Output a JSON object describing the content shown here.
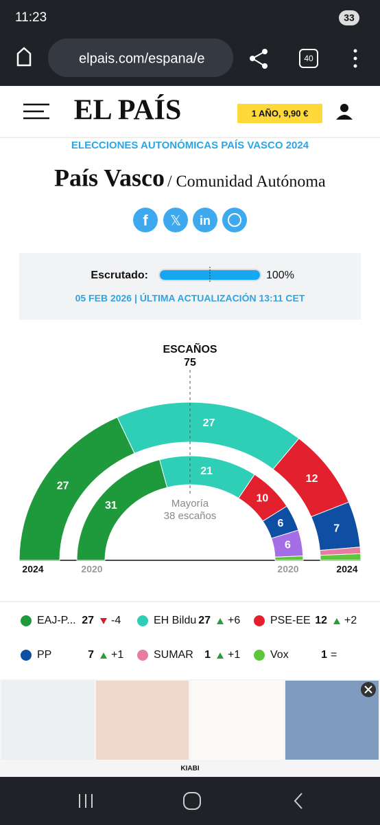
{
  "status_bar": {
    "time": "11:23",
    "badge": "33"
  },
  "browser": {
    "url": "elpais.com/espana/e",
    "tabs": "40"
  },
  "header": {
    "logo": "EL PAÍS",
    "subscribe": "1 AÑO, 9,90 €"
  },
  "kicker": "ELECCIONES AUTONÓMICAS PAÍS VASCO 2024",
  "title": "País Vasco",
  "subtitle": "/ Comunidad Autónoma",
  "scrutiny": {
    "label": "Escrutado:",
    "value": 100,
    "value_label": "100%",
    "updated": "05 FEB 2026 | ÚLTIMA ACTUALIZACIÓN 13:11 CET"
  },
  "chart_data": {
    "type": "parliament",
    "title": "ESCAÑOS",
    "total": 75,
    "majority_label": "Mayoría",
    "majority_seats_label": "38 escaños",
    "rings": [
      "2024",
      "2020"
    ],
    "series": [
      {
        "name": "EAJ-P...",
        "color": "#1e9a3c",
        "values": [
          27,
          31
        ],
        "change": "-4"
      },
      {
        "name": "EH Bildu",
        "color": "#2ecfb6",
        "values": [
          27,
          21
        ],
        "change": "+6"
      },
      {
        "name": "PSE-EE",
        "color": "#e3202e",
        "values": [
          12,
          10
        ],
        "change": "+2"
      },
      {
        "name": "PP",
        "color": "#0f4fa3",
        "values": [
          7,
          6
        ],
        "change": "+1"
      },
      {
        "name": "SUMAR",
        "color": "#e87ca0",
        "values": [
          1,
          0
        ],
        "change": "+1"
      },
      {
        "name": null,
        "color": "#a56ee6",
        "values": [
          0,
          6
        ],
        "change": null
      },
      {
        "name": "Vox",
        "color": "#5cc73c",
        "values": [
          1,
          1
        ],
        "change": "="
      }
    ]
  },
  "ad": {
    "brand": "KIABI"
  }
}
